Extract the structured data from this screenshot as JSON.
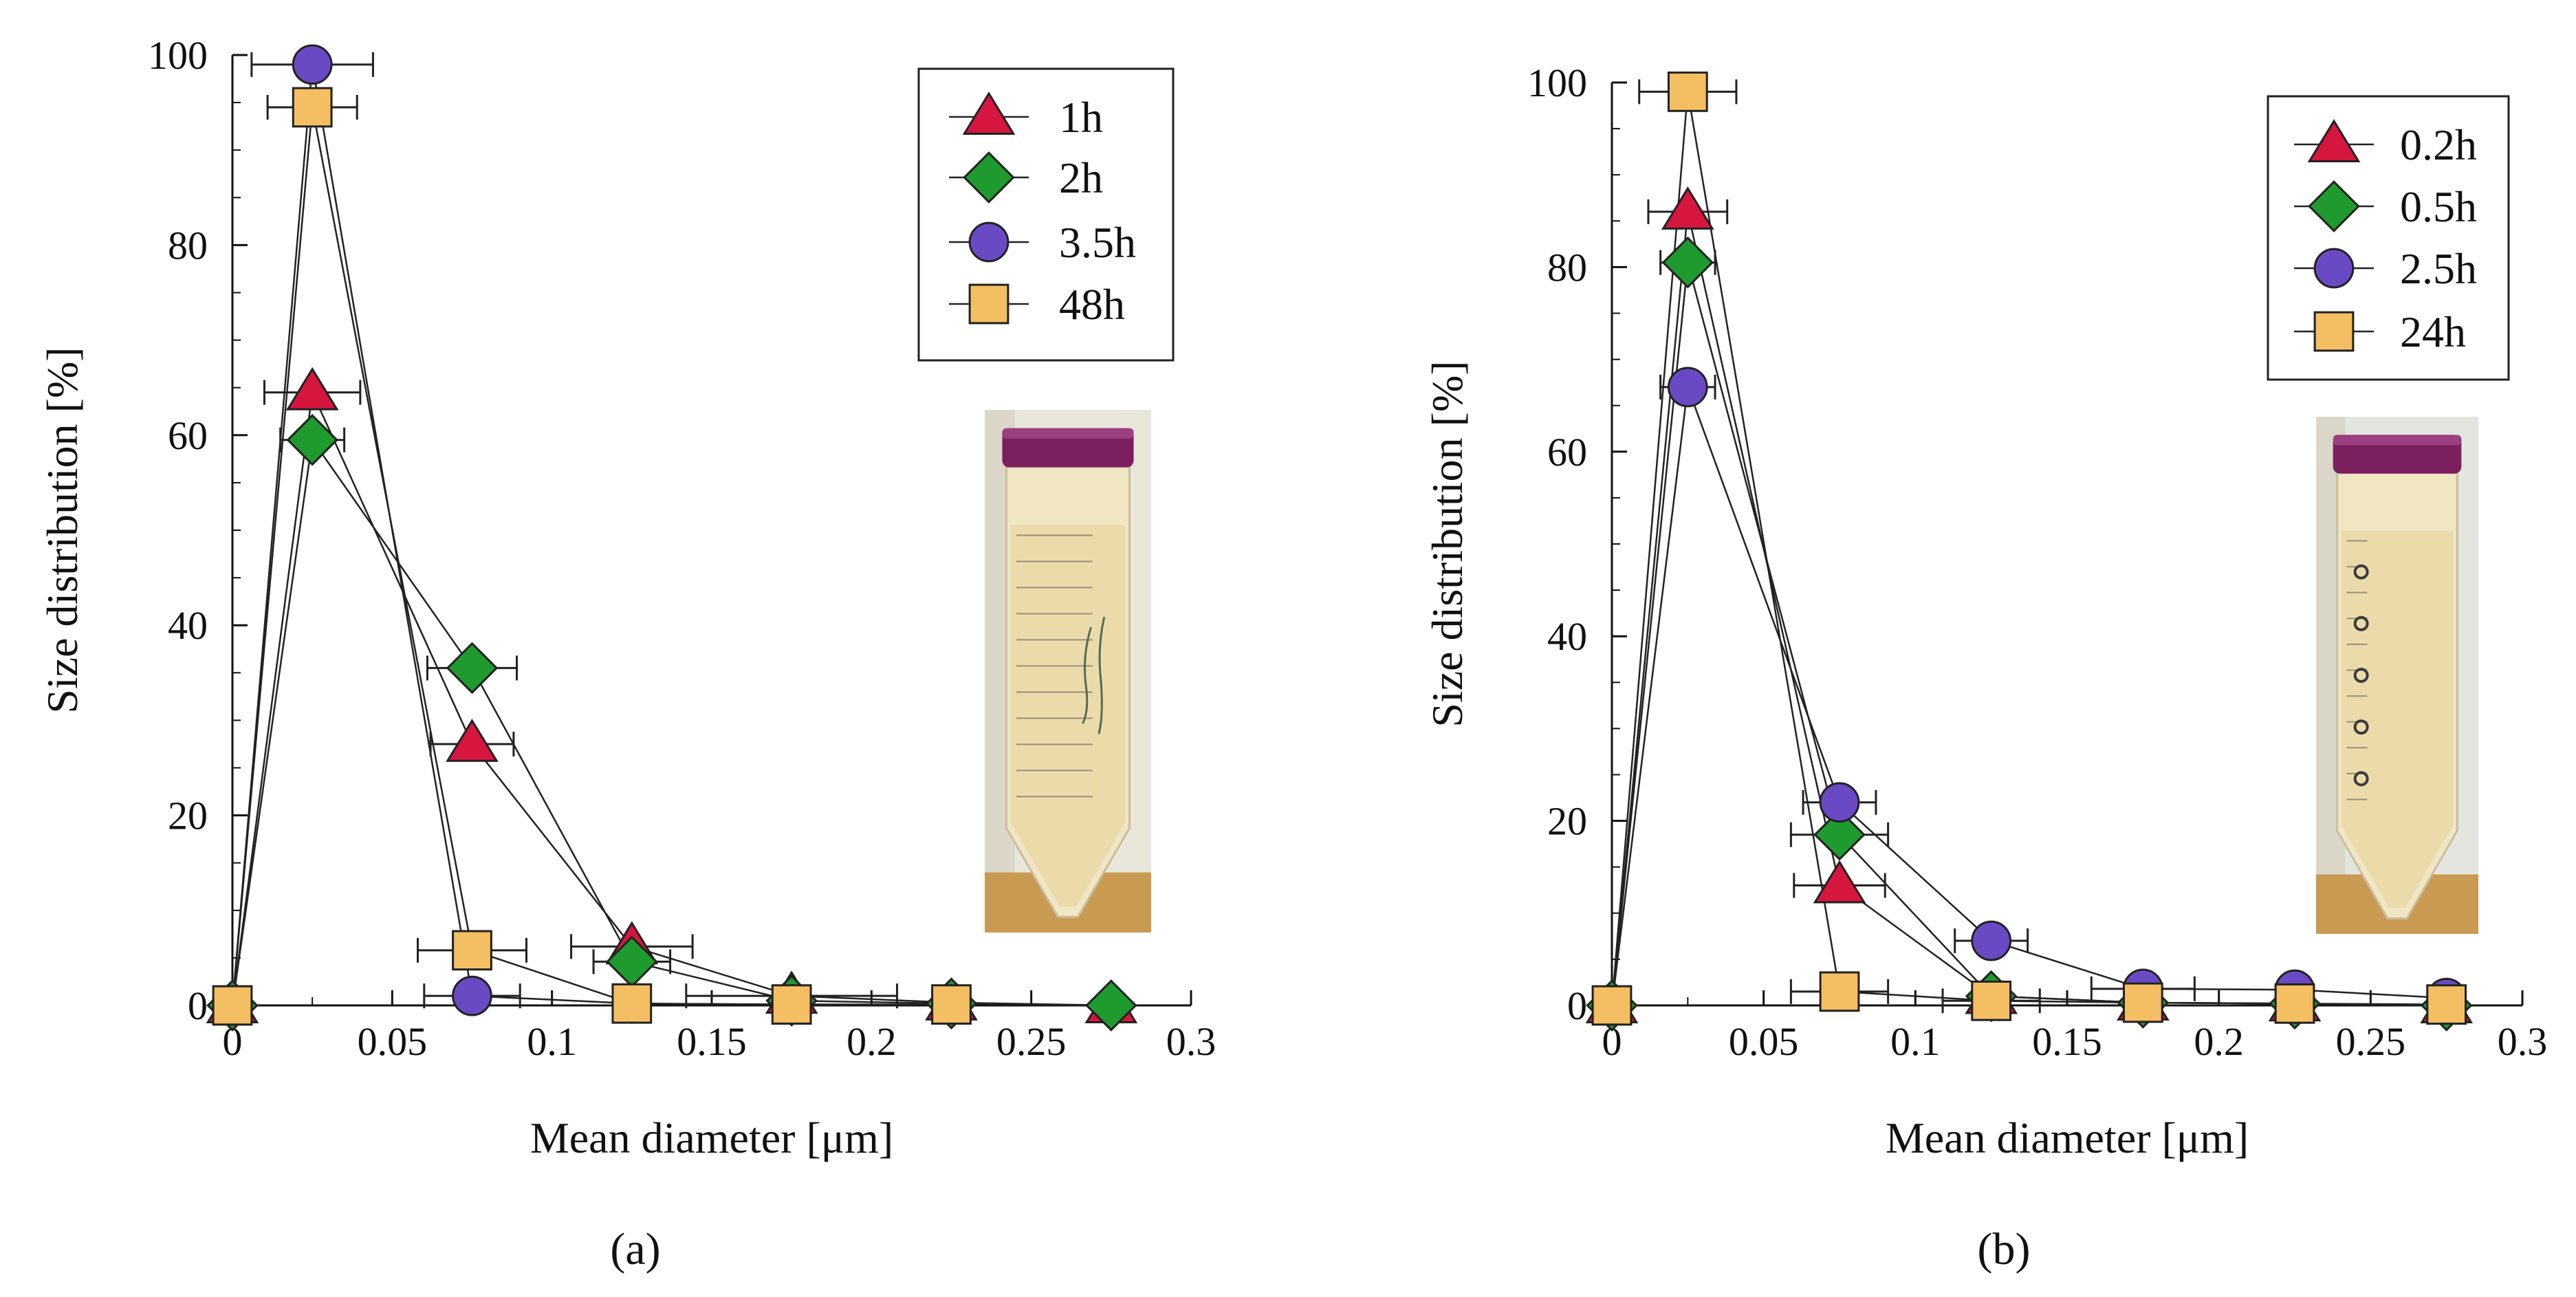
{
  "chart_data": [
    {
      "type": "line",
      "panel": "a",
      "xlabel": "Mean diameter [μm]",
      "ylabel": "Size distribution [%]",
      "xlim": [
        0,
        0.3
      ],
      "ylim": [
        0,
        100
      ],
      "xticks": [
        0,
        0.05,
        0.1,
        0.15,
        0.2,
        0.25,
        0.3
      ],
      "xtick_labels": [
        "0",
        "0.05",
        "0.1",
        "0.15",
        "0.2",
        "0.25",
        "0.3"
      ],
      "yticks": [
        0,
        20,
        40,
        60,
        80,
        100
      ],
      "ytick_labels": [
        "0",
        "20",
        "40",
        "60",
        "80",
        "100"
      ],
      "legend_position": "top-right",
      "inset": "photo of sample tube",
      "series": [
        {
          "name": "1h",
          "marker": "triangle",
          "color": "#d6163f",
          "x": [
            0,
            0.025,
            0.075,
            0.125,
            0.175,
            0.225,
            0.275
          ],
          "y": [
            0,
            64.5,
            27.5,
            6.2,
            1.0,
            0.3,
            0
          ],
          "xerr": [
            0,
            0.015,
            0.013,
            0.019,
            0.033,
            0,
            0
          ]
        },
        {
          "name": "2h",
          "marker": "diamond",
          "color": "#1e9a2e",
          "x": [
            0,
            0.025,
            0.075,
            0.125,
            0.175,
            0.225,
            0.275
          ],
          "y": [
            0,
            59.5,
            35.5,
            4.6,
            0.5,
            0.2,
            0
          ],
          "xerr": [
            0,
            0.01,
            0.014,
            0.012,
            0,
            0,
            0
          ]
        },
        {
          "name": "3.5h",
          "marker": "circle",
          "color": "#6a4ac4",
          "x": [
            0,
            0.025,
            0.075,
            0.125,
            0.175,
            0.225
          ],
          "y": [
            0,
            99.0,
            1.0,
            0.2,
            0.1,
            0.1
          ],
          "xerr": [
            0,
            0.019,
            0.015,
            0,
            0,
            0
          ]
        },
        {
          "name": "48h",
          "marker": "square",
          "color": "#f4be62",
          "x": [
            0,
            0.025,
            0.075,
            0.125,
            0.175,
            0.225
          ],
          "y": [
            0,
            94.5,
            5.8,
            0.2,
            0.1,
            0.1
          ],
          "xerr": [
            0,
            0.014,
            0.017,
            0,
            0,
            0
          ]
        }
      ]
    },
    {
      "type": "line",
      "panel": "b",
      "xlabel": "Mean diameter [μm]",
      "ylabel": "Size distribution [%]",
      "xlim": [
        0,
        0.3
      ],
      "ylim": [
        0,
        100
      ],
      "xticks": [
        0,
        0.05,
        0.1,
        0.15,
        0.2,
        0.25,
        0.3
      ],
      "xtick_labels": [
        "0",
        "0.05",
        "0.1",
        "0.15",
        "0.2",
        "0.25",
        "0.3"
      ],
      "yticks": [
        0,
        20,
        40,
        60,
        80,
        100
      ],
      "ytick_labels": [
        "0",
        "20",
        "40",
        "60",
        "80",
        "100"
      ],
      "legend_position": "top-right",
      "inset": "photo of sample tube",
      "series": [
        {
          "name": "0.2h",
          "marker": "triangle",
          "color": "#d6163f",
          "x": [
            0,
            0.025,
            0.075,
            0.125,
            0.175,
            0.225,
            0.275
          ],
          "y": [
            0,
            86.0,
            13.0,
            1.0,
            0.3,
            0.2,
            0
          ],
          "xerr": [
            0,
            0.013,
            0.015,
            0,
            0,
            0,
            0
          ]
        },
        {
          "name": "0.5h",
          "marker": "diamond",
          "color": "#1e9a2e",
          "x": [
            0,
            0.025,
            0.075,
            0.125,
            0.175,
            0.225,
            0.275
          ],
          "y": [
            0,
            80.5,
            18.5,
            1.0,
            0.3,
            0.2,
            0
          ],
          "xerr": [
            0,
            0.009,
            0.016,
            0,
            0,
            0,
            0
          ]
        },
        {
          "name": "2.5h",
          "marker": "circle",
          "color": "#6a4ac4",
          "x": [
            0,
            0.025,
            0.075,
            0.125,
            0.175,
            0.225,
            0.275
          ],
          "y": [
            0,
            67.0,
            22.0,
            7.0,
            1.8,
            1.7,
            0.8
          ],
          "xerr": [
            0,
            0.009,
            0.012,
            0.012,
            0.017,
            0,
            0
          ]
        },
        {
          "name": "24h",
          "marker": "square",
          "color": "#f4be62",
          "x": [
            0,
            0.025,
            0.075,
            0.125,
            0.175,
            0.225,
            0.275
          ],
          "y": [
            0,
            99.0,
            1.5,
            0.5,
            0.3,
            0.2,
            0.1
          ],
          "xerr": [
            0,
            0.016,
            0.016,
            0.016,
            0,
            0,
            0
          ]
        }
      ]
    }
  ],
  "panel_labels": [
    "(a)",
    "(b)"
  ]
}
